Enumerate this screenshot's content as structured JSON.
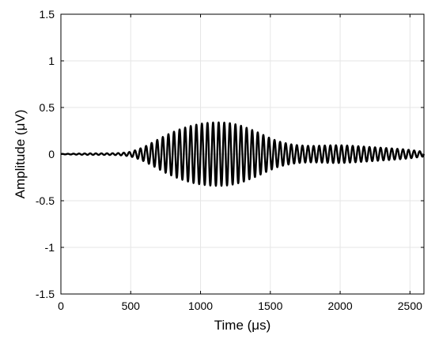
{
  "chart_data": {
    "type": "line",
    "xlabel": "Time (μs)",
    "ylabel": "Amplitude (μV)",
    "xlim": [
      0,
      2600
    ],
    "ylim": [
      -1.5,
      1.5
    ],
    "x_ticks": [
      0,
      500,
      1000,
      1500,
      2000,
      2500
    ],
    "x_tick_labels": [
      "0",
      "500",
      "1000",
      "1500",
      "2000",
      "2500"
    ],
    "y_ticks": [
      -1.5,
      -1,
      -0.5,
      0,
      0.5,
      1,
      1.5
    ],
    "y_tick_labels": [
      "-1.5",
      "-1",
      "-0.5",
      "0",
      "0.5",
      "1",
      "1.5"
    ],
    "grid": true,
    "series": [
      {
        "color": "#000000",
        "carrier_period_us": 40,
        "envelope": {
          "time_us": [
            0,
            100,
            200,
            300,
            400,
            450,
            500,
            550,
            600,
            650,
            700,
            750,
            800,
            850,
            900,
            950,
            1000,
            1050,
            1100,
            1150,
            1200,
            1250,
            1300,
            1350,
            1400,
            1450,
            1500,
            1550,
            1600,
            1650,
            1700,
            1750,
            1800,
            1850,
            1900,
            1950,
            2000,
            2050,
            2100,
            2150,
            2200,
            2250,
            2300,
            2350,
            2400,
            2450,
            2500,
            2550,
            2600
          ],
          "amplitude_uv": [
            0.002,
            0.005,
            0.008,
            0.008,
            0.01,
            0.015,
            0.025,
            0.05,
            0.08,
            0.12,
            0.16,
            0.2,
            0.235,
            0.265,
            0.29,
            0.31,
            0.325,
            0.335,
            0.34,
            0.34,
            0.335,
            0.32,
            0.3,
            0.27,
            0.24,
            0.205,
            0.17,
            0.14,
            0.12,
            0.105,
            0.095,
            0.09,
            0.088,
            0.09,
            0.093,
            0.095,
            0.095,
            0.092,
            0.088,
            0.083,
            0.078,
            0.073,
            0.068,
            0.063,
            0.058,
            0.052,
            0.045,
            0.035,
            0.025
          ]
        }
      }
    ]
  }
}
